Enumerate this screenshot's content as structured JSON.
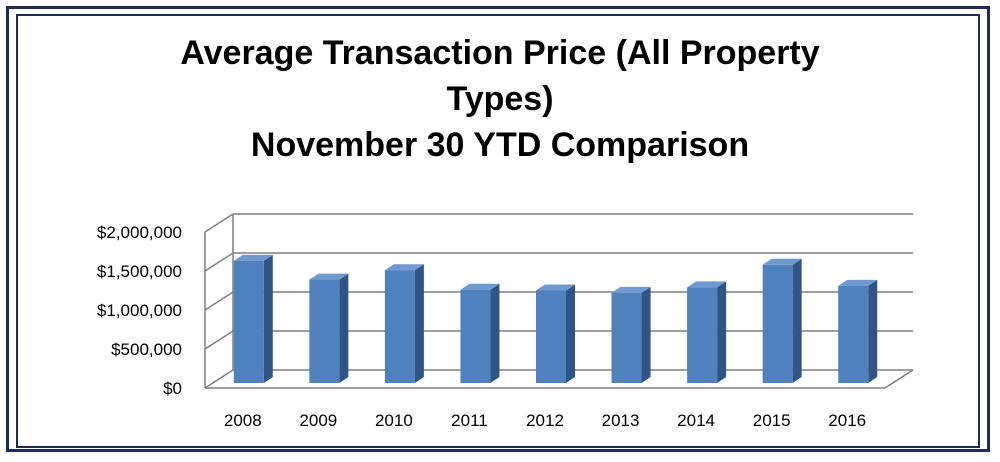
{
  "chart_data": {
    "type": "bar",
    "title_lines": [
      "Average Transaction Price (All Property",
      "Types)",
      "November 30 YTD Comparison"
    ],
    "categories": [
      "2008",
      "2009",
      "2010",
      "2011",
      "2012",
      "2013",
      "2014",
      "2015",
      "2016"
    ],
    "values": [
      1630000,
      1390000,
      1510000,
      1260000,
      1250000,
      1220000,
      1290000,
      1580000,
      1310000
    ],
    "y_ticks": [
      "$0",
      "$500,000",
      "$1,000,000",
      "$1,500,000",
      "$2,000,000"
    ],
    "ylim": [
      0,
      2000000
    ],
    "grid": true,
    "style": "3d-column",
    "colors": {
      "bar_front": "#4f81bd",
      "bar_side": "#2f5587",
      "bar_top": "#6f99cf",
      "grid": "#7f7f7f"
    }
  }
}
